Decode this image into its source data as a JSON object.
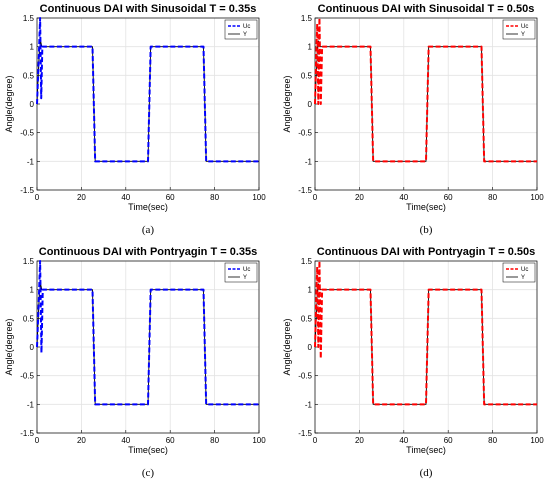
{
  "chart_data": [
    {
      "type": "line",
      "caption": "(a)",
      "title": "Continuous DAI with Sinusoidal T = 0.35s",
      "xlabel": "Time(sec)",
      "ylabel": "Angle(degree)",
      "xlim": [
        0,
        100
      ],
      "ylim": [
        -1.5,
        1.5
      ],
      "xticks": [
        "0",
        "20",
        "40",
        "60",
        "80",
        "100"
      ],
      "yticks": [
        "-1.5",
        "-1",
        "-0.5",
        "0",
        "0.5",
        "1",
        "1.5"
      ],
      "grid": true,
      "legend_position": "top-right",
      "series": [
        {
          "name": "Uc",
          "color": "#0000ff",
          "dash": "dashed",
          "x": [
            0,
            0.8,
            1.4,
            1.9,
            2.4,
            3.0,
            25.0,
            25.6,
            26.2,
            50.0,
            50.6,
            51.2,
            75.0,
            75.6,
            76.2,
            100
          ],
          "y": [
            0,
            0.8,
            1.5,
            0.1,
            1.0,
            1.0,
            1.0,
            0,
            -1.0,
            -1.0,
            0,
            1.0,
            1.0,
            0,
            -1.0,
            -1.0
          ]
        },
        {
          "name": "Y",
          "color": "#000000",
          "dash": "solid",
          "x": [
            0,
            1.0,
            1.6,
            2.2,
            3.0,
            25.0,
            25.6,
            26.2,
            50.0,
            50.6,
            51.2,
            75.0,
            75.6,
            76.2,
            100
          ],
          "y": [
            0,
            0.9,
            1.1,
            1.0,
            1.0,
            1.0,
            0,
            -1.0,
            -1.0,
            0,
            1.0,
            1.0,
            0,
            -1.0,
            -1.0
          ]
        }
      ]
    },
    {
      "type": "line",
      "caption": "(b)",
      "title": "Continuous DAI with Sinusoidal T = 0.50s",
      "xlabel": "Time(sec)",
      "ylabel": "Angle(degree)",
      "xlim": [
        0,
        100
      ],
      "ylim": [
        -1.5,
        1.5
      ],
      "xticks": [
        "0",
        "20",
        "40",
        "60",
        "80",
        "100"
      ],
      "yticks": [
        "-1.5",
        "-1",
        "-0.5",
        "0",
        "0.5",
        "1",
        "1.5"
      ],
      "grid": true,
      "legend_position": "top-right",
      "series": [
        {
          "name": "Uc",
          "color": "#ff0000",
          "dash": "dashed",
          "x": [
            0,
            0.6,
            1.0,
            1.5,
            2.0,
            2.6,
            3.2,
            25.0,
            25.6,
            26.2,
            50.0,
            50.6,
            51.2,
            75.0,
            75.6,
            76.2,
            100
          ],
          "y": [
            0,
            0.9,
            1.4,
            0.0,
            1.5,
            0.0,
            1.0,
            1.0,
            0,
            -1.0,
            -1.0,
            0,
            1.0,
            1.0,
            0,
            -1.0,
            -1.0
          ]
        },
        {
          "name": "Y",
          "color": "#000000",
          "dash": "solid",
          "x": [
            0,
            1.0,
            1.6,
            2.2,
            3.0,
            25.0,
            25.6,
            26.2,
            50.0,
            50.6,
            51.2,
            75.0,
            75.6,
            76.2,
            100
          ],
          "y": [
            0,
            0.9,
            1.1,
            1.0,
            1.0,
            1.0,
            0,
            -1.0,
            -1.0,
            0,
            1.0,
            1.0,
            0,
            -1.0,
            -1.0
          ]
        }
      ]
    },
    {
      "type": "line",
      "caption": "(c)",
      "title": "Continuous DAI with Pontryagin T = 0.35s",
      "xlabel": "Time(sec)",
      "ylabel": "Angle(degree)",
      "xlim": [
        0,
        100
      ],
      "ylim": [
        -1.5,
        1.5
      ],
      "xticks": [
        "0",
        "20",
        "40",
        "60",
        "80",
        "100"
      ],
      "yticks": [
        "-1.5",
        "-1",
        "-0.5",
        "0",
        "0.5",
        "1",
        "1.5"
      ],
      "grid": true,
      "legend_position": "top-right",
      "series": [
        {
          "name": "Uc",
          "color": "#0000ff",
          "dash": "dashed",
          "x": [
            0,
            0.8,
            1.4,
            2.0,
            2.6,
            3.2,
            25.0,
            25.6,
            26.2,
            50.0,
            50.6,
            51.2,
            75.0,
            75.6,
            76.2,
            100
          ],
          "y": [
            0,
            0.8,
            1.5,
            -0.1,
            1.0,
            1.0,
            1.0,
            0,
            -1.0,
            -1.0,
            0,
            1.0,
            1.0,
            0,
            -1.0,
            -1.0
          ]
        },
        {
          "name": "Y",
          "color": "#000000",
          "dash": "solid",
          "x": [
            0,
            1.0,
            1.6,
            2.2,
            3.0,
            25.0,
            25.6,
            26.2,
            50.0,
            50.6,
            51.2,
            75.0,
            75.6,
            76.2,
            100
          ],
          "y": [
            0,
            0.9,
            1.1,
            1.0,
            1.0,
            1.0,
            0,
            -1.0,
            -1.0,
            0,
            1.0,
            1.0,
            0,
            -1.0,
            -1.0
          ]
        }
      ]
    },
    {
      "type": "line",
      "caption": "(d)",
      "title": "Continuous DAI with Pontryagin T = 0.50s",
      "xlabel": "Time(sec)",
      "ylabel": "Angle(degree)",
      "xlim": [
        0,
        100
      ],
      "ylim": [
        -1.5,
        1.5
      ],
      "xticks": [
        "0",
        "20",
        "40",
        "60",
        "80",
        "100"
      ],
      "yticks": [
        "-1.5",
        "-1",
        "-0.5",
        "0",
        "0.5",
        "1",
        "1.5"
      ],
      "grid": true,
      "legend_position": "top-right",
      "series": [
        {
          "name": "Uc",
          "color": "#ff0000",
          "dash": "dashed",
          "x": [
            0,
            0.6,
            1.0,
            1.5,
            2.0,
            2.6,
            3.2,
            25.0,
            25.6,
            26.2,
            50.0,
            50.6,
            51.2,
            75.0,
            75.6,
            76.2,
            100
          ],
          "y": [
            0,
            0.9,
            1.4,
            0.0,
            1.5,
            -0.2,
            1.0,
            1.0,
            0,
            -1.0,
            -1.0,
            0,
            1.0,
            1.0,
            0,
            -1.0,
            -1.0
          ]
        },
        {
          "name": "Y",
          "color": "#000000",
          "dash": "solid",
          "x": [
            0,
            1.0,
            1.6,
            2.2,
            3.0,
            25.0,
            25.6,
            26.2,
            50.0,
            50.6,
            51.2,
            75.0,
            75.6,
            76.2,
            100
          ],
          "y": [
            0,
            0.9,
            1.1,
            1.0,
            1.0,
            1.0,
            0,
            -1.0,
            -1.0,
            0,
            1.0,
            1.0,
            0,
            -1.0,
            -1.0
          ]
        }
      ]
    }
  ]
}
